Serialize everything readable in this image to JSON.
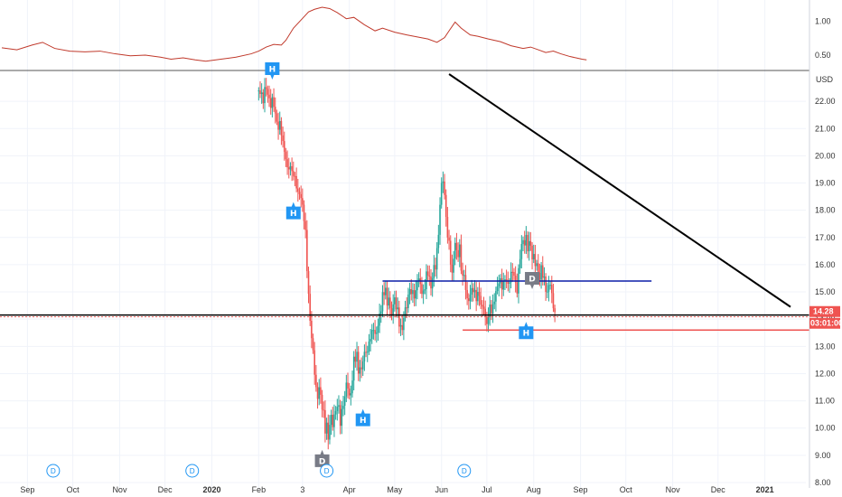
{
  "chart_data": {
    "type": "candlestick",
    "currency": "USD",
    "x_ticks": [
      {
        "label": "Sep",
        "t": 17,
        "bold": false
      },
      {
        "label": "Oct",
        "t": 47,
        "bold": false
      },
      {
        "label": "Nov",
        "t": 78,
        "bold": false
      },
      {
        "label": "Dec",
        "t": 108,
        "bold": false
      },
      {
        "label": "2020",
        "t": 139,
        "bold": true
      },
      {
        "label": "Feb",
        "t": 170,
        "bold": false
      },
      {
        "label": "3",
        "t": 199,
        "bold": false
      },
      {
        "label": "Apr",
        "t": 230,
        "bold": false
      },
      {
        "label": "May",
        "t": 260,
        "bold": false
      },
      {
        "label": "Jun",
        "t": 291,
        "bold": false
      },
      {
        "label": "Jul",
        "t": 321,
        "bold": false
      },
      {
        "label": "Aug",
        "t": 352,
        "bold": false
      },
      {
        "label": "Sep",
        "t": 383,
        "bold": false
      },
      {
        "label": "Oct",
        "t": 413,
        "bold": false
      },
      {
        "label": "Nov",
        "t": 444,
        "bold": false
      },
      {
        "label": "Dec",
        "t": 474,
        "bold": false
      },
      {
        "label": "2021",
        "t": 505,
        "bold": true
      }
    ],
    "price_axis": {
      "range": [
        7.8,
        23.0
      ],
      "ticks": [
        "22.00",
        "21.00",
        "20.00",
        "19.00",
        "18.00",
        "17.00",
        "16.00",
        "15.00",
        "14.00",
        "13.00",
        "12.00",
        "11.00",
        "10.00",
        "9.00",
        "8.00"
      ]
    },
    "indicator_axis": {
      "range": [
        0.3,
        1.25
      ],
      "ticks": [
        "1.00",
        "0.50"
      ]
    },
    "last_price": {
      "value": 14.28,
      "label": "14.28",
      "countdown": "03:01:00",
      "color": "#ef5350"
    },
    "indicator_series": {
      "color": "#c0392b",
      "points": [
        [
          0,
          0.61
        ],
        [
          10,
          0.58
        ],
        [
          20,
          0.65
        ],
        [
          27,
          0.69
        ],
        [
          35,
          0.6
        ],
        [
          45,
          0.56
        ],
        [
          55,
          0.55
        ],
        [
          65,
          0.56
        ],
        [
          75,
          0.52
        ],
        [
          85,
          0.49
        ],
        [
          95,
          0.5
        ],
        [
          105,
          0.47
        ],
        [
          112,
          0.44
        ],
        [
          120,
          0.46
        ],
        [
          128,
          0.43
        ],
        [
          135,
          0.41
        ],
        [
          145,
          0.44
        ],
        [
          155,
          0.47
        ],
        [
          165,
          0.52
        ],
        [
          170,
          0.56
        ],
        [
          175,
          0.62
        ],
        [
          180,
          0.66
        ],
        [
          185,
          0.65
        ],
        [
          188,
          0.72
        ],
        [
          193,
          0.9
        ],
        [
          198,
          1.02
        ],
        [
          203,
          1.14
        ],
        [
          207,
          1.18
        ],
        [
          212,
          1.21
        ],
        [
          217,
          1.19
        ],
        [
          222,
          1.13
        ],
        [
          228,
          1.04
        ],
        [
          233,
          1.06
        ],
        [
          240,
          0.95
        ],
        [
          247,
          0.86
        ],
        [
          252,
          0.9
        ],
        [
          260,
          0.84
        ],
        [
          268,
          0.8
        ],
        [
          275,
          0.77
        ],
        [
          282,
          0.74
        ],
        [
          288,
          0.69
        ],
        [
          293,
          0.76
        ],
        [
          296,
          0.86
        ],
        [
          300,
          0.99
        ],
        [
          304,
          0.9
        ],
        [
          310,
          0.8
        ],
        [
          315,
          0.78
        ],
        [
          322,
          0.74
        ],
        [
          330,
          0.7
        ],
        [
          337,
          0.64
        ],
        [
          345,
          0.6
        ],
        [
          350,
          0.62
        ],
        [
          355,
          0.58
        ],
        [
          360,
          0.54
        ],
        [
          365,
          0.56
        ],
        [
          370,
          0.52
        ],
        [
          376,
          0.48
        ],
        [
          380,
          0.46
        ],
        [
          384,
          0.44
        ],
        [
          387,
          0.43
        ]
      ]
    },
    "candle_path": [
      [
        170,
        22.4
      ],
      [
        173,
        22.2
      ],
      [
        175,
        22.45
      ],
      [
        177,
        22.1
      ],
      [
        180,
        21.8
      ],
      [
        182,
        21.3
      ],
      [
        184,
        21.0
      ],
      [
        186,
        20.5
      ],
      [
        188,
        20.0
      ],
      [
        189,
        19.3
      ],
      [
        190,
        19.5
      ],
      [
        192,
        19.6
      ],
      [
        194,
        19.0
      ],
      [
        196,
        18.6
      ],
      [
        197,
        18.8
      ],
      [
        199,
        18.0
      ],
      [
        201,
        17.2
      ],
      [
        202,
        16.0
      ],
      [
        203,
        14.8
      ],
      [
        204,
        13.8
      ],
      [
        206,
        12.8
      ],
      [
        207,
        12.2
      ],
      [
        208,
        11.3
      ],
      [
        209,
        11.0
      ],
      [
        210,
        11.5
      ],
      [
        212,
        10.9
      ],
      [
        213,
        10.4
      ],
      [
        214,
        9.8
      ],
      [
        215,
        10.2
      ],
      [
        216,
        9.6
      ],
      [
        217,
        10.3
      ],
      [
        219,
        10.1
      ],
      [
        220,
        10.5
      ],
      [
        222,
        10.9
      ],
      [
        224,
        10.2
      ],
      [
        225,
        10.7
      ],
      [
        227,
        11.2
      ],
      [
        229,
        11.6
      ],
      [
        230,
        11.2
      ],
      [
        232,
        11.7
      ],
      [
        233,
        12.4
      ],
      [
        235,
        12.8
      ],
      [
        236,
        12.2
      ],
      [
        238,
        12.0
      ],
      [
        239,
        12.6
      ],
      [
        241,
        13.0
      ],
      [
        242,
        12.6
      ],
      [
        243,
        13.1
      ],
      [
        244,
        13.4
      ],
      [
        246,
        13.8
      ],
      [
        247,
        13.2
      ],
      [
        248,
        13.5
      ],
      [
        250,
        14.2
      ],
      [
        252,
        14.7
      ],
      [
        254,
        15.2
      ],
      [
        255,
        14.5
      ],
      [
        256,
        14.9
      ],
      [
        257,
        14.1
      ],
      [
        258,
        14.3
      ],
      [
        260,
        14.8
      ],
      [
        261,
        14.4
      ],
      [
        263,
        13.9
      ],
      [
        265,
        13.6
      ],
      [
        266,
        14.0
      ],
      [
        267,
        14.2
      ],
      [
        268,
        14.6
      ],
      [
        270,
        15.1
      ],
      [
        271,
        14.8
      ],
      [
        272,
        14.9
      ],
      [
        274,
        15.0
      ],
      [
        275,
        15.4
      ],
      [
        277,
        15.2
      ],
      [
        279,
        15.0
      ],
      [
        280,
        15.1
      ],
      [
        281,
        15.5
      ],
      [
        283,
        15.7
      ],
      [
        284,
        15.1
      ],
      [
        285,
        15.5
      ],
      [
        287,
        15.9
      ],
      [
        288,
        16.7
      ],
      [
        289,
        17.1
      ],
      [
        290,
        18.2
      ],
      [
        291,
        18.7
      ],
      [
        292,
        19.2
      ],
      [
        293,
        18.6
      ],
      [
        294,
        17.8
      ],
      [
        295,
        17.0
      ],
      [
        297,
        16.2
      ],
      [
        298,
        15.7
      ],
      [
        299,
        16.3
      ],
      [
        300,
        16.8
      ],
      [
        301,
        16.3
      ],
      [
        303,
        16.7
      ],
      [
        304,
        15.9
      ],
      [
        305,
        15.6
      ],
      [
        307,
        15.3
      ],
      [
        308,
        14.7
      ],
      [
        310,
        14.9
      ],
      [
        312,
        15.2
      ],
      [
        314,
        14.8
      ],
      [
        315,
        15.0
      ],
      [
        317,
        14.7
      ],
      [
        318,
        14.4
      ],
      [
        319,
        14.5
      ],
      [
        320,
        14.1
      ],
      [
        321,
        13.9
      ],
      [
        323,
        14.5
      ],
      [
        324,
        14.3
      ],
      [
        326,
        14.8
      ],
      [
        327,
        15.1
      ],
      [
        328,
        15.2
      ],
      [
        330,
        15.5
      ],
      [
        331,
        15.3
      ],
      [
        333,
        15.5
      ],
      [
        335,
        15.3
      ],
      [
        336,
        15.6
      ],
      [
        338,
        15.8
      ],
      [
        339,
        15.5
      ],
      [
        341,
        15.2
      ],
      [
        342,
        15.8
      ],
      [
        343,
        16.3
      ],
      [
        344,
        16.6
      ],
      [
        345,
        16.9
      ],
      [
        347,
        17.0
      ],
      [
        348,
        16.6
      ],
      [
        350,
        16.7
      ],
      [
        351,
        16.4
      ],
      [
        352,
        16.3
      ],
      [
        354,
        15.8
      ],
      [
        356,
        15.6
      ],
      [
        357,
        15.9
      ],
      [
        359,
        15.3
      ],
      [
        360,
        15.0
      ],
      [
        362,
        15.2
      ],
      [
        363,
        15.3
      ],
      [
        364,
        14.7
      ],
      [
        365,
        14.4
      ],
      [
        366,
        14.28
      ]
    ]
  },
  "drawings": {
    "resistance_line": {
      "color": "#0d1fa8",
      "t1": 252,
      "t2": 430,
      "price": 15.4
    },
    "support_line": {
      "color": "#000000",
      "price": 14.15
    },
    "red_line": {
      "color": "#ef5350",
      "t1": 305,
      "price": 13.6
    },
    "trend_line": {
      "color": "#000000",
      "t1": 296,
      "p1": 23.0,
      "t2": 522,
      "p2": 14.45
    },
    "divider_color": "#555555"
  },
  "markers": [
    {
      "type": "H",
      "t": 179,
      "price": 22.8,
      "dir": "down",
      "color": "#2196f3"
    },
    {
      "type": "H",
      "t": 193,
      "price": 18.3,
      "dir": "up",
      "color": "#2196f3"
    },
    {
      "type": "H",
      "t": 239,
      "price": 10.7,
      "dir": "up",
      "color": "#2196f3"
    },
    {
      "type": "D",
      "t": 212,
      "price": 9.2,
      "dir": "up",
      "color": "#787b86"
    },
    {
      "type": "D",
      "t": 351,
      "price": 15.1,
      "dir": "down",
      "color": "#787b86"
    },
    {
      "type": "H",
      "t": 347,
      "price": 13.9,
      "dir": "up",
      "color": "#2196f3"
    }
  ],
  "dividends": [
    {
      "label": "D",
      "t": 34
    },
    {
      "label": "D",
      "t": 126
    },
    {
      "label": "D",
      "t": 215
    },
    {
      "label": "D",
      "t": 306
    }
  ]
}
